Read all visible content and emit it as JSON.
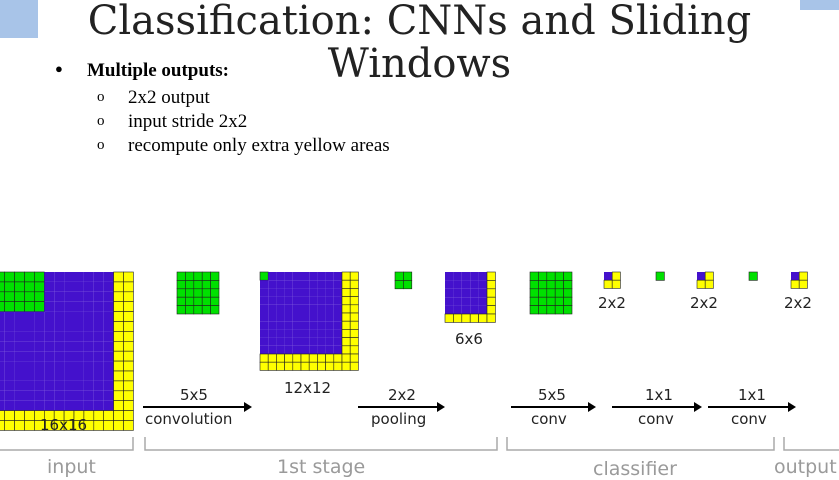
{
  "title_line1": "Classification: CNNs and Sliding",
  "title_line2": "Windows",
  "bullet": "Multiple outputs:",
  "sub_items": [
    "2x2 output",
    "input stride 2x2",
    "recompute only extra yellow areas"
  ],
  "sizes": {
    "input": "16x16",
    "stage1": "12x12",
    "pooled": "6x6",
    "out1": "2x2",
    "out2": "2x2",
    "out3": "2x2"
  },
  "ops": [
    {
      "top": "5x5",
      "bottom": "convolution"
    },
    {
      "top": "2x2",
      "bottom": "pooling"
    },
    {
      "top": "5x5",
      "bottom": "conv"
    },
    {
      "top": "1x1",
      "bottom": "conv"
    },
    {
      "top": "1x1",
      "bottom": "conv"
    }
  ],
  "stages": [
    "input",
    "1st stage",
    "classifier",
    "output"
  ],
  "colors": {
    "green": "#00e000",
    "blue": "#4411cc",
    "yellow": "#ffff00",
    "grid": "#202020",
    "banner": "#a8c4e8"
  }
}
